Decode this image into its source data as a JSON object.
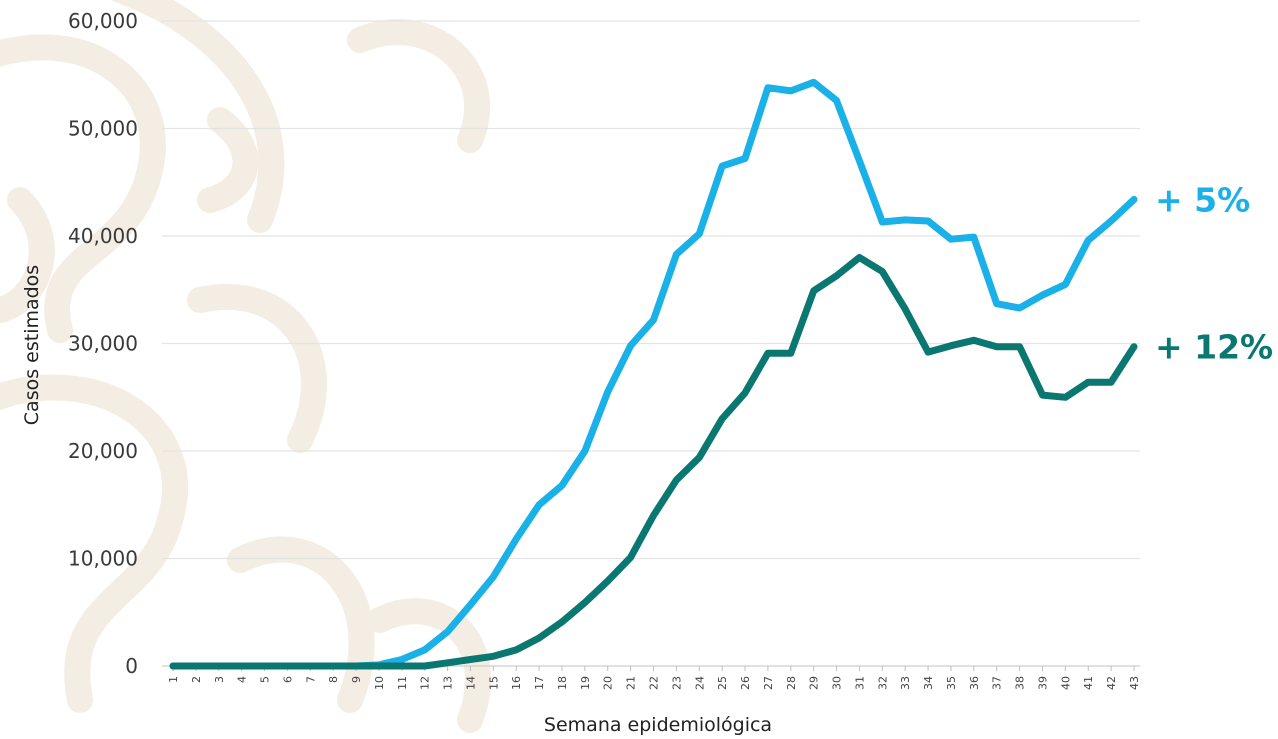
{
  "chart_data": {
    "type": "line",
    "title": "",
    "xlabel": "Semana epidemiológica",
    "ylabel": "Casos estimados",
    "ylim": [
      0,
      60000
    ],
    "yticks": [
      0,
      10000,
      20000,
      30000,
      40000,
      50000,
      60000
    ],
    "ytick_labels": [
      "0",
      "10,000",
      "20,000",
      "30,000",
      "40,000",
      "50,000",
      "60,000"
    ],
    "grid": true,
    "x": [
      1,
      2,
      3,
      4,
      5,
      6,
      7,
      8,
      9,
      10,
      11,
      12,
      13,
      14,
      15,
      16,
      17,
      18,
      19,
      20,
      21,
      22,
      23,
      24,
      25,
      26,
      27,
      28,
      29,
      30,
      31,
      32,
      33,
      34,
      35,
      36,
      37,
      38,
      39,
      40,
      41,
      42,
      43
    ],
    "series": [
      {
        "color": "#1ab0e8",
        "end_label": "+ 5%",
        "values": [
          0,
          0,
          0,
          0,
          0,
          0,
          0,
          0,
          0,
          100,
          600,
          1500,
          3200,
          5700,
          8300,
          11800,
          15000,
          16800,
          20000,
          25500,
          29800,
          32200,
          38300,
          40200,
          46500,
          47200,
          53800,
          53500,
          54300,
          52600,
          47000,
          41300,
          41500,
          41400,
          39700,
          39900,
          33700,
          33300,
          34500,
          35500,
          39600,
          41400,
          43400
        ]
      },
      {
        "color": "#0a7770",
        "end_label": "+ 12%",
        "values": [
          0,
          0,
          0,
          0,
          0,
          0,
          0,
          0,
          0,
          0,
          0,
          0,
          300,
          600,
          900,
          1500,
          2600,
          4100,
          5900,
          7900,
          10100,
          14000,
          17300,
          19400,
          23000,
          25400,
          29100,
          29100,
          34900,
          36300,
          38000,
          36700,
          33200,
          29200,
          29800,
          30300,
          29700,
          29700,
          25200,
          25000,
          26400,
          26400,
          29700
        ]
      }
    ]
  }
}
